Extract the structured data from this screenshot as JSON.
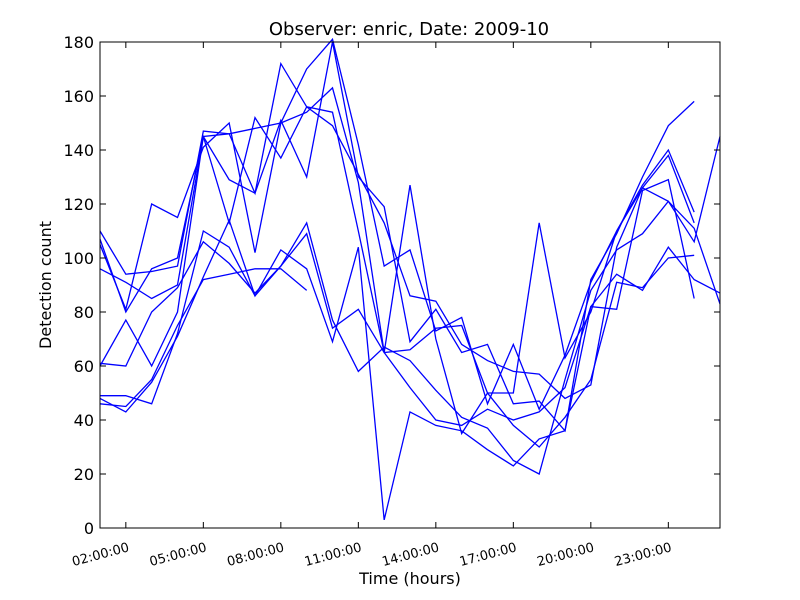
{
  "chart_data": {
    "type": "line",
    "title": "Observer: enric, Date: 2009-10",
    "xlabel": "Time (hours)",
    "ylabel": "Detection count",
    "ylim": [
      0,
      180
    ],
    "yticks": [
      0,
      20,
      40,
      60,
      80,
      100,
      120,
      140,
      160,
      180
    ],
    "xlim": [
      "01:00:00",
      "25:00:00"
    ],
    "xticks": [
      "02:00:00",
      "05:00:00",
      "08:00:00",
      "11:00:00",
      "14:00:00",
      "17:00:00",
      "20:00:00",
      "23:00:00"
    ],
    "x": [
      "01:00:00",
      "02:00:00",
      "03:00:00",
      "04:00:00",
      "05:00:00",
      "06:00:00",
      "07:00:00",
      "08:00:00",
      "09:00:00",
      "10:00:00",
      "11:00:00",
      "12:00:00",
      "13:00:00",
      "14:00:00",
      "15:00:00",
      "16:00:00",
      "17:00:00",
      "18:00:00",
      "19:00:00",
      "20:00:00",
      "21:00:00",
      "22:00:00",
      "23:00:00",
      "24:00:00",
      "25:00:00"
    ],
    "line_color": "#0000ff",
    "grid": false,
    "series": [
      {
        "values": [
          110,
          94,
          95,
          97,
          147,
          146,
          124,
          172,
          156,
          154,
          110,
          65,
          52,
          40,
          38,
          44,
          40,
          43,
          52,
          82,
          81,
          125,
          129,
          85,
          null
        ]
      },
      {
        "values": [
          107,
          80,
          96,
          100,
          145,
          129,
          124,
          151,
          130,
          180,
          130,
          119,
          69,
          81,
          65,
          68,
          46,
          47,
          36,
          92,
          109,
          130,
          149,
          158,
          null
        ]
      },
      {
        "values": [
          105,
          81,
          120,
          115,
          141,
          150,
          102,
          150,
          170,
          181,
          142,
          97,
          103,
          73,
          78,
          46,
          68,
          44,
          64,
          91,
          110,
          127,
          140,
          117,
          null
        ]
      },
      {
        "values": [
          96,
          91,
          85,
          90,
          145,
          113,
          152,
          137,
          156,
          149,
          131,
          113,
          86,
          84,
          68,
          62,
          58,
          57,
          48,
          53,
          104,
          126,
          138,
          113,
          null
        ]
      },
      {
        "values": [
          60,
          77,
          60,
          80,
          145,
          146,
          148,
          150,
          154,
          163,
          128,
          65,
          127,
          70,
          35,
          50,
          50,
          113,
          63,
          80,
          110,
          126,
          121,
          106,
          145
        ]
      },
      {
        "values": [
          61,
          60,
          80,
          89,
          106,
          98,
          87,
          97,
          113,
          77,
          58,
          67,
          62,
          51,
          41,
          37,
          25,
          20,
          55,
          88,
          103,
          109,
          121,
          111,
          83
        ]
      },
      {
        "values": [
          49,
          49,
          46,
          72,
          110,
          104,
          86,
          97,
          109,
          74,
          81,
          65,
          66,
          74,
          75,
          50,
          38,
          30,
          41,
          55,
          91,
          89,
          100,
          101,
          null
        ]
      },
      {
        "values": [
          48,
          43,
          54,
          71,
          93,
          114,
          86,
          103,
          96,
          69,
          104,
          3,
          43,
          38,
          36,
          29,
          23,
          33,
          36,
          82,
          94,
          88,
          104,
          92,
          87
        ]
      },
      {
        "values": [
          46,
          45,
          55,
          75,
          92,
          94,
          96,
          96,
          88,
          null,
          null,
          null,
          null,
          null,
          null,
          null,
          null,
          null,
          null,
          null,
          null,
          null,
          null,
          null,
          null
        ]
      }
    ]
  }
}
